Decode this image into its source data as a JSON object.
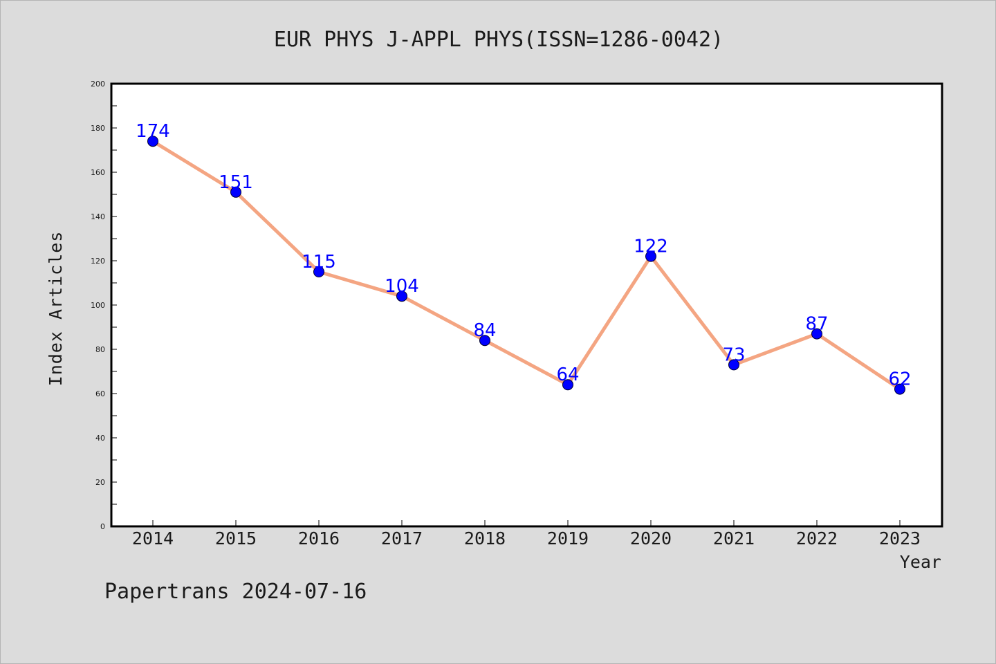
{
  "colors": {
    "line": "#f4a582",
    "marker": "#0000ff",
    "label": "#0000ff",
    "background": "#dcdcdc",
    "plot_bg": "#ffffff"
  },
  "footer": "Papertrans 2024-07-16",
  "chart_data": {
    "type": "line",
    "title": "EUR PHYS J-APPL PHYS(ISSN=1286-0042)",
    "xlabel": "Year",
    "ylabel": "Index Articles",
    "categories": [
      "2014",
      "2015",
      "2016",
      "2017",
      "2018",
      "2019",
      "2020",
      "2021",
      "2022",
      "2023"
    ],
    "values": [
      174,
      151,
      115,
      104,
      84,
      64,
      122,
      73,
      87,
      62
    ],
    "ylim": [
      0,
      200
    ],
    "yticks": [
      0,
      20,
      40,
      60,
      80,
      100,
      120,
      140,
      160,
      180,
      200
    ],
    "grid": false,
    "legend": "none"
  }
}
